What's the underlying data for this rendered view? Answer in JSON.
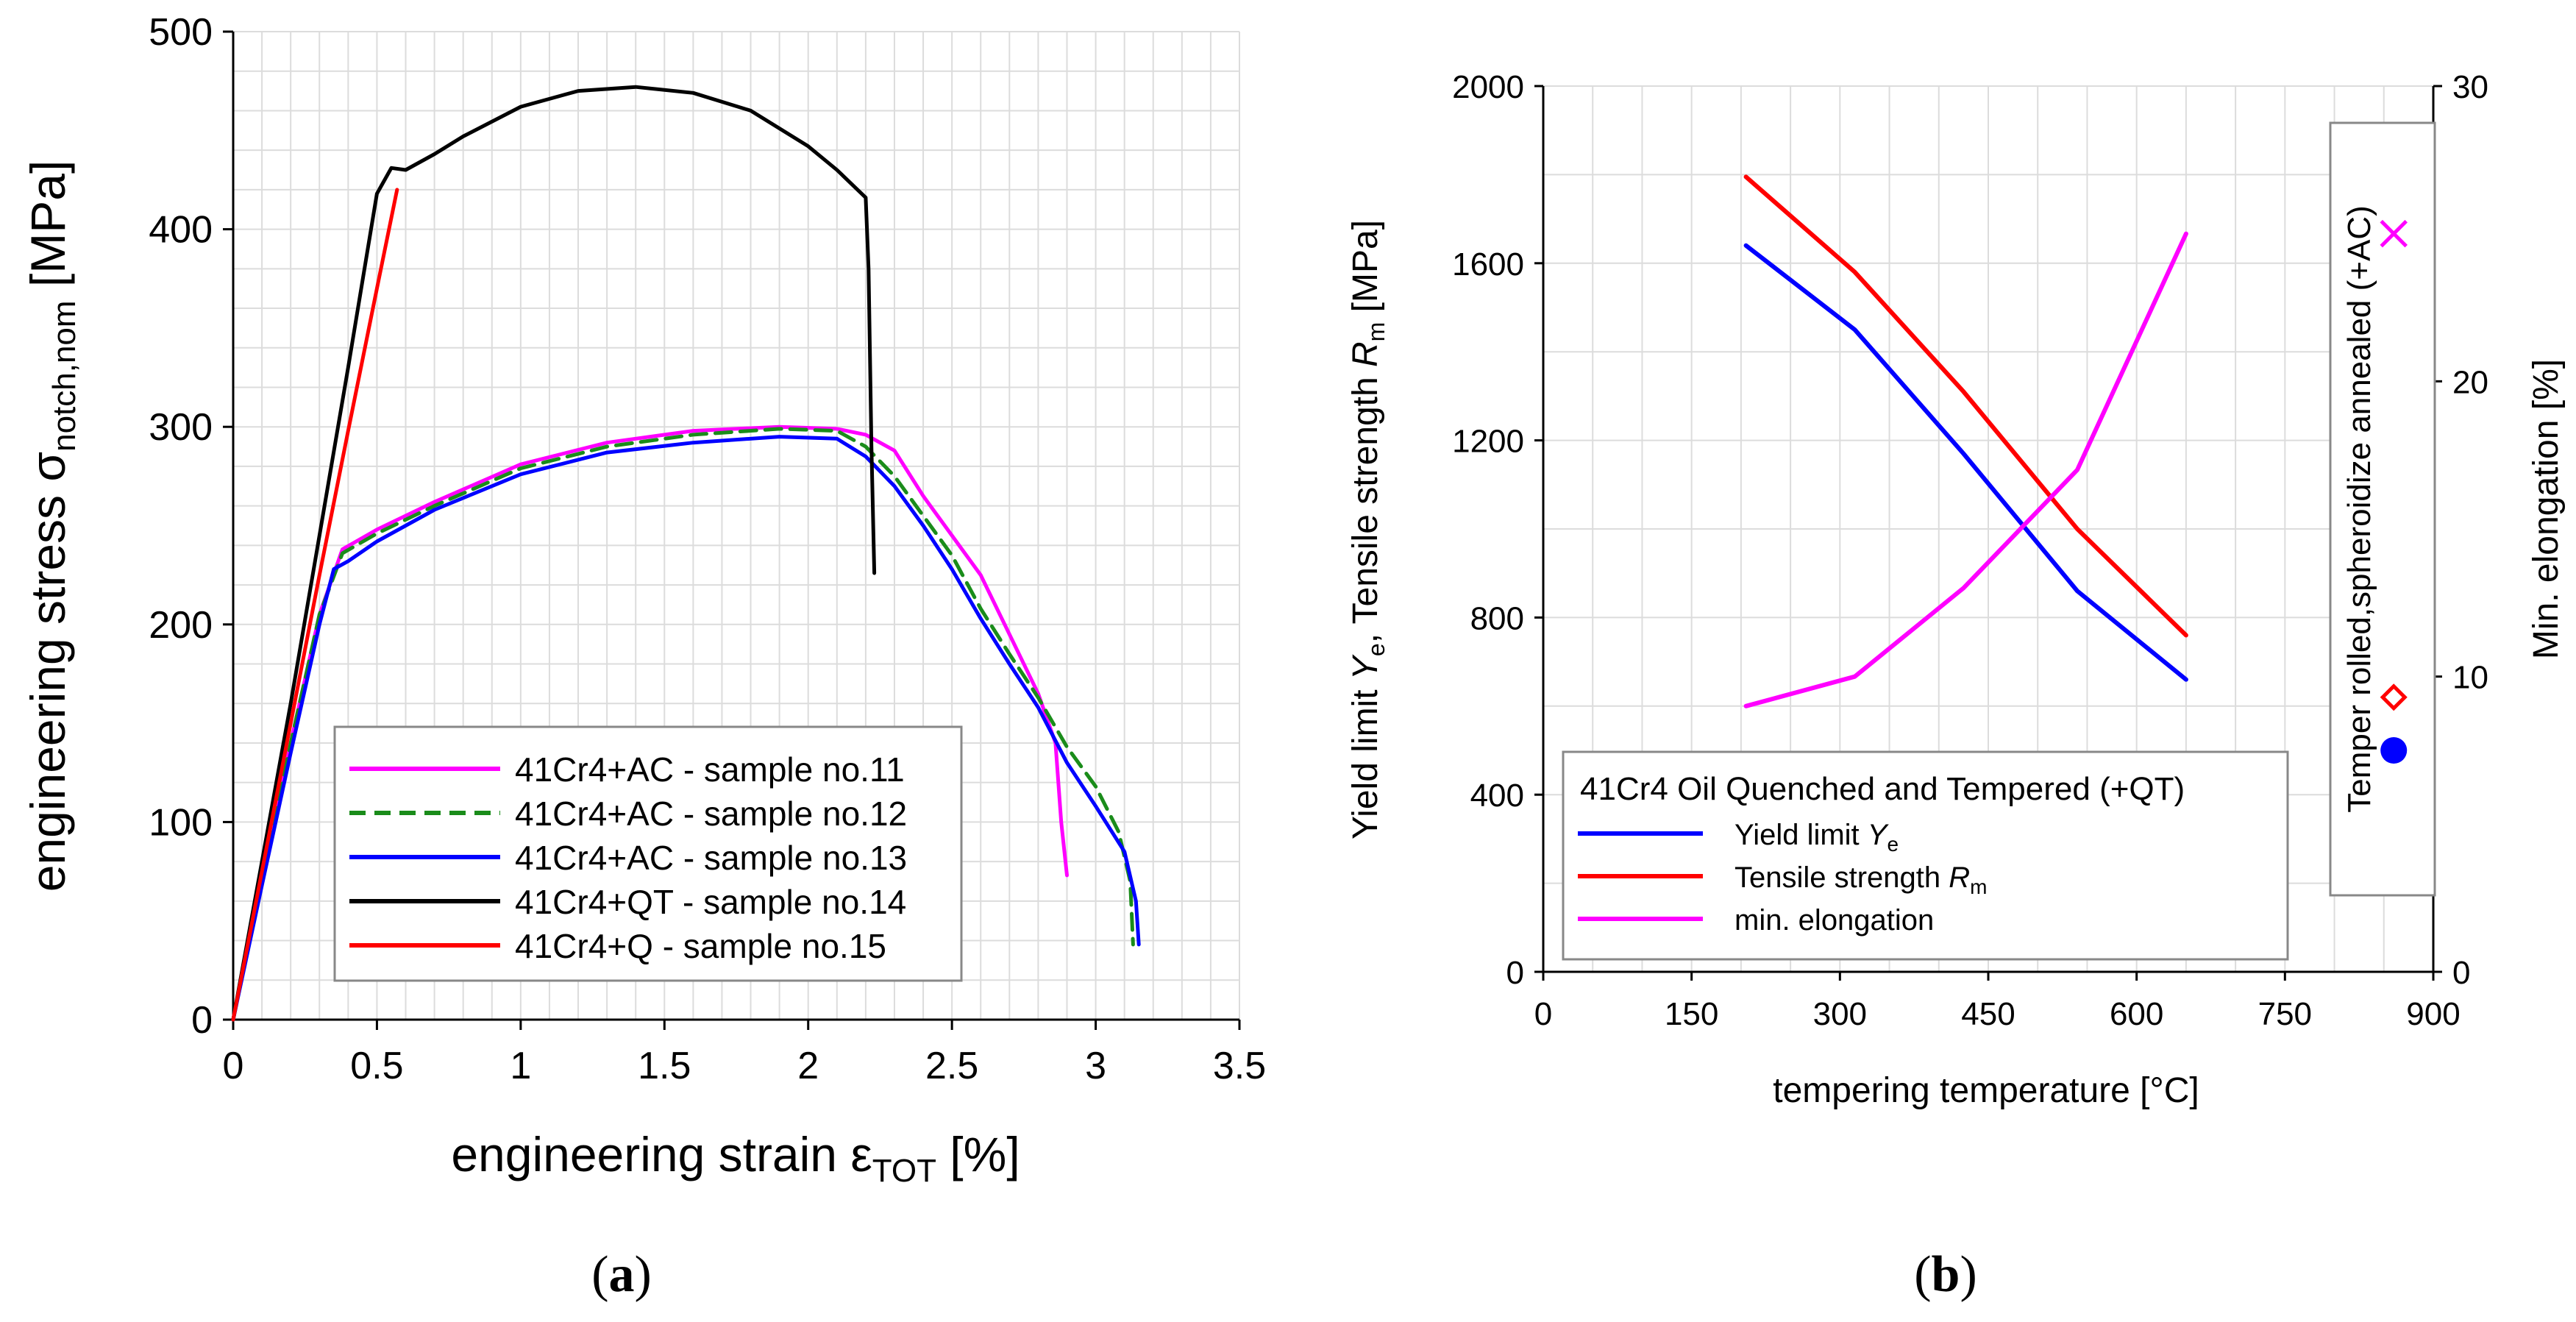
{
  "chart_data": [
    {
      "id": "a",
      "type": "line",
      "panel_label": "(a)",
      "xlabel": "engineering strain ε",
      "xlabel_sub": "TOT",
      "xlabel_unit": " [%]",
      "ylabel": "engineering stress σ",
      "ylabel_sub": "notch,nom",
      "ylabel_unit": " [MPa]",
      "xlim": [
        0,
        3.5
      ],
      "ylim": [
        0,
        500
      ],
      "xticks": [
        0,
        0.5,
        1,
        1.5,
        2,
        2.5,
        3,
        3.5
      ],
      "xtick_labels": [
        "0",
        "0.5",
        "1",
        "1.5",
        "2",
        "2.5",
        "3",
        "3.5"
      ],
      "yticks": [
        0,
        100,
        200,
        300,
        400,
        500
      ],
      "ytick_labels": [
        "0",
        "100",
        "200",
        "300",
        "400",
        "500"
      ],
      "grid": true,
      "legend_position": "bottom-center",
      "series": [
        {
          "name": "41Cr4+AC - sample no.11",
          "color": "#ff00ff",
          "dash": "solid",
          "x": [
            0,
            0.1,
            0.2,
            0.3,
            0.38,
            0.5,
            0.7,
            1.0,
            1.3,
            1.6,
            1.9,
            2.1,
            2.2,
            2.3,
            2.4,
            2.5,
            2.6,
            2.7,
            2.8,
            2.86,
            2.88,
            2.9
          ],
          "y": [
            0,
            70,
            140,
            205,
            238,
            248,
            262,
            281,
            292,
            298,
            300,
            299,
            296,
            288,
            265,
            245,
            225,
            195,
            165,
            140,
            100,
            73
          ]
        },
        {
          "name": "41Cr4+AC - sample no.12",
          "color": "#1a8c1a",
          "dash": "dashed",
          "x": [
            0,
            0.1,
            0.2,
            0.3,
            0.38,
            0.5,
            0.7,
            1.0,
            1.3,
            1.6,
            1.9,
            2.1,
            2.2,
            2.3,
            2.4,
            2.5,
            2.6,
            2.7,
            2.8,
            2.9,
            3.0,
            3.08,
            3.12,
            3.13
          ],
          "y": [
            0,
            70,
            140,
            205,
            236,
            246,
            260,
            279,
            290,
            296,
            299,
            298,
            290,
            275,
            255,
            235,
            208,
            185,
            163,
            138,
            118,
            95,
            70,
            38
          ]
        },
        {
          "name": "41Cr4+AC - sample no.13",
          "color": "#0000ff",
          "dash": "solid",
          "x": [
            0,
            0.1,
            0.2,
            0.3,
            0.35,
            0.4,
            0.5,
            0.7,
            1.0,
            1.3,
            1.6,
            1.9,
            2.1,
            2.2,
            2.3,
            2.4,
            2.5,
            2.6,
            2.7,
            2.8,
            2.9,
            3.0,
            3.1,
            3.14,
            3.15
          ],
          "y": [
            0,
            68,
            135,
            200,
            228,
            232,
            242,
            258,
            276,
            287,
            292,
            295,
            294,
            285,
            270,
            250,
            228,
            203,
            180,
            158,
            130,
            108,
            85,
            60,
            38
          ]
        },
        {
          "name": "41Cr4+QT - sample no.14",
          "color": "#000000",
          "dash": "solid",
          "x": [
            0,
            0.1,
            0.2,
            0.3,
            0.4,
            0.5,
            0.55,
            0.6,
            0.7,
            0.8,
            1.0,
            1.2,
            1.4,
            1.6,
            1.8,
            2.0,
            2.1,
            2.2,
            2.21,
            2.22,
            2.23
          ],
          "y": [
            0,
            80,
            160,
            245,
            330,
            418,
            431,
            430,
            438,
            447,
            462,
            470,
            472,
            469,
            460,
            442,
            430,
            416,
            380,
            290,
            226
          ]
        },
        {
          "name": "41Cr4+Q - sample no.15",
          "color": "#ff0000",
          "dash": "solid",
          "x": [
            0,
            0.1,
            0.2,
            0.3,
            0.4,
            0.5,
            0.57
          ],
          "y": [
            0,
            75,
            150,
            225,
            298,
            370,
            420
          ]
        }
      ]
    },
    {
      "id": "b",
      "type": "line",
      "panel_label": "(b)",
      "xlabel": "tempering temperature [°C]",
      "ylabel_parts": [
        "Yield limit ",
        "Y",
        "e",
        ",  Tensile strength ",
        "R",
        "m",
        "  [MPa]"
      ],
      "y2label": "Min. elongation [%]",
      "xlim": [
        0,
        900
      ],
      "ylim": [
        0,
        2000
      ],
      "y2lim": [
        0,
        30
      ],
      "xticks": [
        0,
        150,
        300,
        450,
        600,
        750,
        900
      ],
      "xtick_labels": [
        "0",
        "150",
        "300",
        "450",
        "600",
        "750",
        "900"
      ],
      "yticks": [
        0,
        400,
        800,
        1200,
        1600,
        2000
      ],
      "ytick_labels": [
        "0",
        "400",
        "800",
        "1200",
        "1600",
        "2000"
      ],
      "y2ticks": [
        0,
        10,
        20,
        30
      ],
      "y2tick_labels": [
        "0",
        "10",
        "20",
        "30"
      ],
      "grid": true,
      "legend_title": "41Cr4 Oil Quenched and Tempered (+QT)",
      "legend_position": "bottom-left",
      "series": [
        {
          "name": "Yield limit ",
          "name_italic": "Y",
          "name_sub": "e",
          "color": "#0000ff",
          "axis": "left",
          "x": [
            205,
            315,
            425,
            540,
            650
          ],
          "y": [
            1640,
            1450,
            1170,
            860,
            660
          ]
        },
        {
          "name": "Tensile strength ",
          "name_italic": "R",
          "name_sub": "m",
          "color": "#ff0000",
          "axis": "left",
          "x": [
            205,
            315,
            425,
            540,
            650
          ],
          "y": [
            1795,
            1580,
            1310,
            1000,
            760
          ]
        },
        {
          "name": "min. elongation",
          "name_italic": "",
          "name_sub": "",
          "color": "#ff00ff",
          "axis": "right",
          "x": [
            205,
            315,
            425,
            540,
            650
          ],
          "y": [
            9,
            10,
            13,
            17,
            25
          ]
        }
      ],
      "annealed_box": {
        "label": "Temper rolled,spheroidize annealed (+AC)",
        "points": [
          {
            "name": "elongation",
            "marker": "x",
            "color": "#ff00ff",
            "x": 860,
            "axis": "right",
            "y": 25
          },
          {
            "name": "tensile strength",
            "marker": "diamond",
            "color": "#ff0000",
            "x": 860,
            "axis": "left",
            "y": 620
          },
          {
            "name": "yield limit",
            "marker": "circle",
            "color": "#0000ff",
            "x": 860,
            "axis": "left",
            "y": 500
          }
        ]
      }
    }
  ]
}
